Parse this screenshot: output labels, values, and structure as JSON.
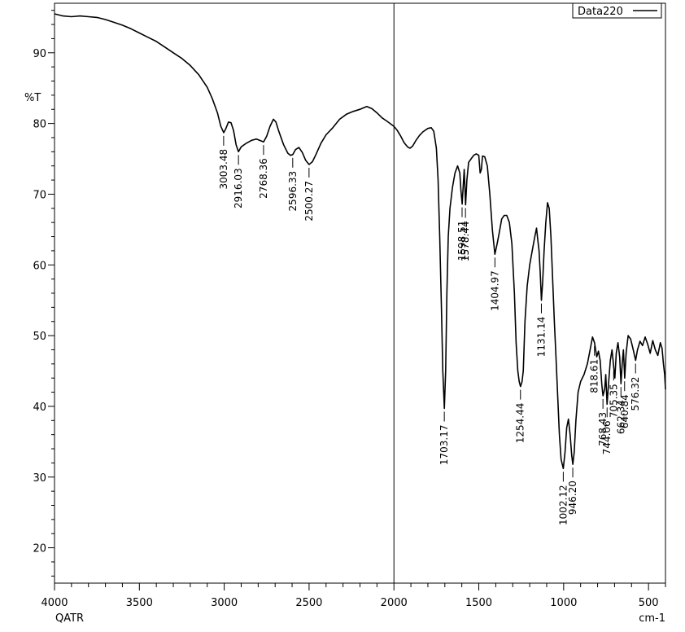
{
  "chart_data": {
    "type": "line",
    "title": "",
    "xlabel": "cm-1",
    "ylabel": "%T",
    "x_corner_label": "QATR",
    "xlim": [
      4000,
      400
    ],
    "ylim": [
      15,
      97
    ],
    "x_reversed": true,
    "grid": false,
    "divider_at": 2000,
    "legend": {
      "placement": "top-right",
      "entries": [
        "Data220"
      ]
    },
    "x_ticks": [
      4000,
      3500,
      3000,
      2500,
      2000,
      1500,
      1000,
      500
    ],
    "y_ticks": [
      20,
      30,
      40,
      50,
      60,
      70,
      80,
      90
    ],
    "series": [
      {
        "name": "Data220",
        "color": "#000000",
        "points": [
          [
            4000,
            95.5
          ],
          [
            3950,
            95.2
          ],
          [
            3900,
            95.1
          ],
          [
            3850,
            95.2
          ],
          [
            3800,
            95.1
          ],
          [
            3750,
            95.0
          ],
          [
            3700,
            94.7
          ],
          [
            3650,
            94.3
          ],
          [
            3600,
            93.9
          ],
          [
            3550,
            93.4
          ],
          [
            3500,
            92.8
          ],
          [
            3450,
            92.2
          ],
          [
            3400,
            91.6
          ],
          [
            3350,
            90.8
          ],
          [
            3300,
            90.0
          ],
          [
            3250,
            89.2
          ],
          [
            3200,
            88.2
          ],
          [
            3150,
            86.9
          ],
          [
            3100,
            85.1
          ],
          [
            3070,
            83.5
          ],
          [
            3040,
            81.5
          ],
          [
            3020,
            79.6
          ],
          [
            3003,
            78.7
          ],
          [
            2990,
            79.3
          ],
          [
            2975,
            80.2
          ],
          [
            2960,
            80.1
          ],
          [
            2945,
            79.0
          ],
          [
            2930,
            77.0
          ],
          [
            2916,
            76.0
          ],
          [
            2900,
            76.7
          ],
          [
            2870,
            77.2
          ],
          [
            2840,
            77.6
          ],
          [
            2810,
            77.8
          ],
          [
            2790,
            77.6
          ],
          [
            2768,
            77.4
          ],
          [
            2750,
            78.2
          ],
          [
            2730,
            79.6
          ],
          [
            2710,
            80.6
          ],
          [
            2695,
            80.2
          ],
          [
            2680,
            79.0
          ],
          [
            2650,
            77.0
          ],
          [
            2625,
            75.8
          ],
          [
            2610,
            75.5
          ],
          [
            2596,
            75.6
          ],
          [
            2580,
            76.3
          ],
          [
            2560,
            76.6
          ],
          [
            2540,
            75.9
          ],
          [
            2520,
            74.8
          ],
          [
            2500,
            74.2
          ],
          [
            2480,
            74.6
          ],
          [
            2460,
            75.6
          ],
          [
            2430,
            77.2
          ],
          [
            2400,
            78.4
          ],
          [
            2360,
            79.4
          ],
          [
            2320,
            80.6
          ],
          [
            2280,
            81.3
          ],
          [
            2240,
            81.7
          ],
          [
            2200,
            82.0
          ],
          [
            2160,
            82.4
          ],
          [
            2130,
            82.1
          ],
          [
            2100,
            81.5
          ],
          [
            2070,
            80.8
          ],
          [
            2040,
            80.3
          ],
          [
            2000,
            79.6
          ],
          [
            1980,
            79.0
          ],
          [
            1960,
            78.2
          ],
          [
            1940,
            77.3
          ],
          [
            1920,
            76.7
          ],
          [
            1905,
            76.5
          ],
          [
            1890,
            76.8
          ],
          [
            1870,
            77.6
          ],
          [
            1850,
            78.3
          ],
          [
            1830,
            78.8
          ],
          [
            1800,
            79.3
          ],
          [
            1780,
            79.4
          ],
          [
            1765,
            78.9
          ],
          [
            1750,
            76.5
          ],
          [
            1740,
            72.0
          ],
          [
            1730,
            64.0
          ],
          [
            1720,
            54.0
          ],
          [
            1712,
            45.0
          ],
          [
            1703,
            39.7
          ],
          [
            1695,
            45.0
          ],
          [
            1688,
            56.0
          ],
          [
            1680,
            64.0
          ],
          [
            1670,
            68.0
          ],
          [
            1655,
            71.0
          ],
          [
            1640,
            73.0
          ],
          [
            1625,
            74.0
          ],
          [
            1612,
            73.0
          ],
          [
            1605,
            70.5
          ],
          [
            1598,
            68.6
          ],
          [
            1592,
            71.0
          ],
          [
            1586,
            73.5
          ],
          [
            1578,
            68.5
          ],
          [
            1570,
            72.0
          ],
          [
            1560,
            74.5
          ],
          [
            1545,
            75.0
          ],
          [
            1530,
            75.5
          ],
          [
            1515,
            75.7
          ],
          [
            1500,
            75.5
          ],
          [
            1492,
            73.0
          ],
          [
            1485,
            73.5
          ],
          [
            1478,
            75.4
          ],
          [
            1465,
            75.3
          ],
          [
            1450,
            74.0
          ],
          [
            1435,
            70.0
          ],
          [
            1420,
            65.0
          ],
          [
            1405,
            61.5
          ],
          [
            1392,
            63.0
          ],
          [
            1380,
            64.5
          ],
          [
            1365,
            66.5
          ],
          [
            1350,
            67.0
          ],
          [
            1335,
            67.0
          ],
          [
            1320,
            66.0
          ],
          [
            1305,
            63.0
          ],
          [
            1290,
            56.0
          ],
          [
            1280,
            49.0
          ],
          [
            1270,
            45.0
          ],
          [
            1262,
            43.5
          ],
          [
            1254,
            42.8
          ],
          [
            1245,
            43.5
          ],
          [
            1238,
            45.0
          ],
          [
            1228,
            52.0
          ],
          [
            1215,
            57.0
          ],
          [
            1200,
            60.0
          ],
          [
            1185,
            62.0
          ],
          [
            1170,
            64.0
          ],
          [
            1160,
            65.2
          ],
          [
            1152,
            63.5
          ],
          [
            1145,
            62.0
          ],
          [
            1138,
            59.0
          ],
          [
            1131,
            55.0
          ],
          [
            1124,
            57.5
          ],
          [
            1115,
            62.0
          ],
          [
            1105,
            66.0
          ],
          [
            1095,
            68.8
          ],
          [
            1085,
            68.0
          ],
          [
            1075,
            64.0
          ],
          [
            1065,
            58.0
          ],
          [
            1055,
            52.0
          ],
          [
            1045,
            47.0
          ],
          [
            1035,
            41.5
          ],
          [
            1025,
            36.0
          ],
          [
            1015,
            32.5
          ],
          [
            1002,
            31.2
          ],
          [
            992,
            33.5
          ],
          [
            982,
            37.0
          ],
          [
            972,
            38.2
          ],
          [
            962,
            36.0
          ],
          [
            952,
            33.0
          ],
          [
            946,
            31.8
          ],
          [
            938,
            33.5
          ],
          [
            928,
            38.0
          ],
          [
            915,
            42.0
          ],
          [
            900,
            43.5
          ],
          [
            880,
            44.5
          ],
          [
            860,
            46.0
          ],
          [
            840,
            48.5
          ],
          [
            830,
            49.8
          ],
          [
            818,
            49.0
          ],
          [
            805,
            47.0
          ],
          [
            795,
            47.8
          ],
          [
            785,
            46.5
          ],
          [
            775,
            43.0
          ],
          [
            768,
            41.5
          ],
          [
            758,
            42.5
          ],
          [
            752,
            44.5
          ],
          [
            744,
            40.3
          ],
          [
            736,
            43.0
          ],
          [
            725,
            46.5
          ],
          [
            715,
            48.0
          ],
          [
            705,
            45.5
          ],
          [
            698,
            44.0
          ],
          [
            690,
            47.5
          ],
          [
            680,
            49.0
          ],
          [
            670,
            47.0
          ],
          [
            662,
            43.2
          ],
          [
            655,
            46.0
          ],
          [
            648,
            48.0
          ],
          [
            640,
            44.0
          ],
          [
            632,
            47.5
          ],
          [
            620,
            50.0
          ],
          [
            605,
            49.5
          ],
          [
            590,
            48.0
          ],
          [
            576,
            46.5
          ],
          [
            565,
            48.0
          ],
          [
            550,
            49.2
          ],
          [
            535,
            48.6
          ],
          [
            520,
            49.8
          ],
          [
            505,
            48.8
          ],
          [
            490,
            47.5
          ],
          [
            475,
            49.3
          ],
          [
            460,
            48.0
          ],
          [
            445,
            47.2
          ],
          [
            430,
            49.0
          ],
          [
            420,
            48.2
          ],
          [
            412,
            46.0
          ],
          [
            405,
            44.5
          ],
          [
            400,
            42.4
          ]
        ]
      }
    ],
    "peak_labels": [
      {
        "x": 3003.48,
        "y": 78.7,
        "label": "3003.48"
      },
      {
        "x": 2916.03,
        "y": 76.0,
        "label": "2916.03"
      },
      {
        "x": 2768.36,
        "y": 77.4,
        "label": "2768.36"
      },
      {
        "x": 2596.33,
        "y": 75.6,
        "label": "2596.33"
      },
      {
        "x": 2500.27,
        "y": 74.2,
        "label": "2500.27"
      },
      {
        "x": 1703.17,
        "y": 39.7,
        "label": "1703.17"
      },
      {
        "x": 1598.51,
        "y": 68.6,
        "label": "1598.51"
      },
      {
        "x": 1578.44,
        "y": 68.5,
        "label": "1578.44"
      },
      {
        "x": 1404.97,
        "y": 61.5,
        "label": "1404.97"
      },
      {
        "x": 1254.44,
        "y": 42.8,
        "label": "1254.44"
      },
      {
        "x": 1131.14,
        "y": 55.0,
        "label": "1131.14"
      },
      {
        "x": 1002.12,
        "y": 31.2,
        "label": "1002.12"
      },
      {
        "x": 946.2,
        "y": 31.8,
        "label": "946.20"
      },
      {
        "x": 818.61,
        "y": 49.0,
        "label": "818.61"
      },
      {
        "x": 768.43,
        "y": 41.5,
        "label": "768.43"
      },
      {
        "x": 744.06,
        "y": 40.3,
        "label": "744.06"
      },
      {
        "x": 705.35,
        "y": 45.5,
        "label": "705.35"
      },
      {
        "x": 662.34,
        "y": 43.2,
        "label": "662.34"
      },
      {
        "x": 640.84,
        "y": 44.0,
        "label": "640.84"
      },
      {
        "x": 576.32,
        "y": 46.5,
        "label": "576.32"
      }
    ]
  }
}
